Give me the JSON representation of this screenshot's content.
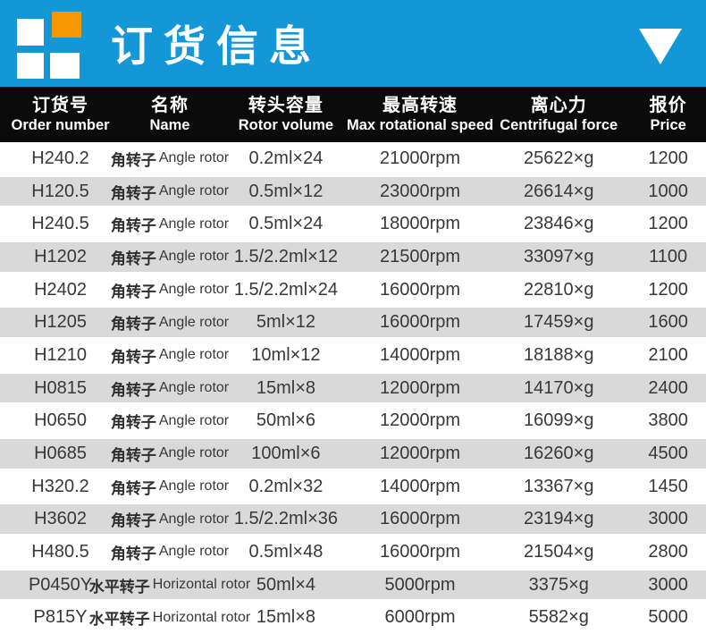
{
  "banner": {
    "title": "订货信息",
    "logo_name": "four-squares-logo",
    "accent_blue": "#1497d7",
    "accent_orange": "#f39800"
  },
  "table": {
    "header_bg": "#0b0b0b",
    "alt_row_bg": "#d9d9d9",
    "columns": [
      {
        "zh": "订货号",
        "en": "Order number"
      },
      {
        "zh": "名称",
        "en": "Name"
      },
      {
        "zh": "转头容量",
        "en": "Rotor volume"
      },
      {
        "zh": "最高转速",
        "en": "Max rotational speed"
      },
      {
        "zh": "离心力",
        "en": "Centrifugal force"
      },
      {
        "zh": "报价",
        "en": "Price"
      }
    ],
    "rows": [
      {
        "order": "H240.2",
        "name_zh": "角转子",
        "name_en": "Angle rotor",
        "volume": "0.2ml×24",
        "speed": "21000rpm",
        "force": "25622×g",
        "price": "1200"
      },
      {
        "order": "H120.5",
        "name_zh": "角转子",
        "name_en": "Angle rotor",
        "volume": "0.5ml×12",
        "speed": "23000rpm",
        "force": "26614×g",
        "price": "1000"
      },
      {
        "order": "H240.5",
        "name_zh": "角转子",
        "name_en": "Angle rotor",
        "volume": "0.5ml×24",
        "speed": "18000rpm",
        "force": "23846×g",
        "price": "1200"
      },
      {
        "order": "H1202",
        "name_zh": "角转子",
        "name_en": "Angle rotor",
        "volume": "1.5/2.2ml×12",
        "speed": "21500rpm",
        "force": "33097×g",
        "price": "1100"
      },
      {
        "order": "H2402",
        "name_zh": "角转子",
        "name_en": "Angle rotor",
        "volume": "1.5/2.2ml×24",
        "speed": "16000rpm",
        "force": "22810×g",
        "price": "1200"
      },
      {
        "order": "H1205",
        "name_zh": "角转子",
        "name_en": "Angle rotor",
        "volume": "5ml×12",
        "speed": "16000rpm",
        "force": "17459×g",
        "price": "1600"
      },
      {
        "order": "H1210",
        "name_zh": "角转子",
        "name_en": "Angle rotor",
        "volume": "10ml×12",
        "speed": "14000rpm",
        "force": "18188×g",
        "price": "2100"
      },
      {
        "order": "H0815",
        "name_zh": "角转子",
        "name_en": "Angle rotor",
        "volume": "15ml×8",
        "speed": "12000rpm",
        "force": "14170×g",
        "price": "2400"
      },
      {
        "order": "H0650",
        "name_zh": "角转子",
        "name_en": "Angle rotor",
        "volume": "50ml×6",
        "speed": "12000rpm",
        "force": "16099×g",
        "price": "3800"
      },
      {
        "order": "H0685",
        "name_zh": "角转子",
        "name_en": "Angle rotor",
        "volume": "100ml×6",
        "speed": "12000rpm",
        "force": "16260×g",
        "price": "4500"
      },
      {
        "order": "H320.2",
        "name_zh": "角转子",
        "name_en": "Angle rotor",
        "volume": "0.2ml×32",
        "speed": "14000rpm",
        "force": "13367×g",
        "price": "1450"
      },
      {
        "order": "H3602",
        "name_zh": "角转子",
        "name_en": "Angle rotor",
        "volume": "1.5/2.2ml×36",
        "speed": "16000rpm",
        "force": "23194×g",
        "price": "3000"
      },
      {
        "order": "H480.5",
        "name_zh": "角转子",
        "name_en": "Angle rotor",
        "volume": "0.5ml×48",
        "speed": "16000rpm",
        "force": "21504×g",
        "price": "2800"
      },
      {
        "order": "P0450Y",
        "name_zh": "水平转子",
        "name_en": "Horizontal rotor",
        "volume": "50ml×4",
        "speed": "5000rpm",
        "force": "3375×g",
        "price": "3000"
      },
      {
        "order": "P815Y",
        "name_zh": "水平转子",
        "name_en": "Horizontal rotor",
        "volume": "15ml×8",
        "speed": "6000rpm",
        "force": "5582×g",
        "price": "5000"
      }
    ]
  }
}
